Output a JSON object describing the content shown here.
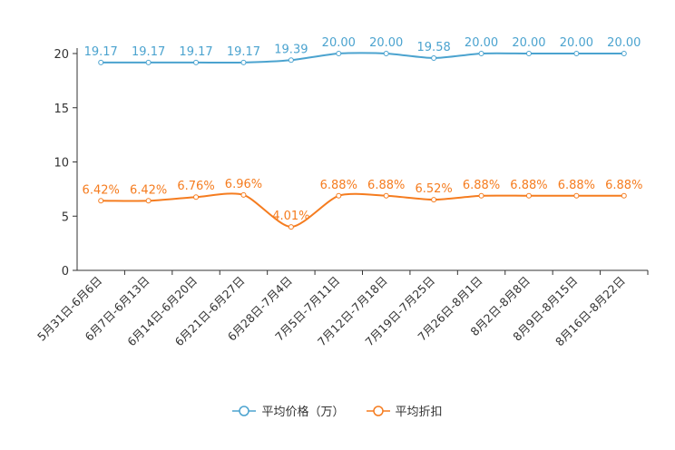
{
  "chart_data": {
    "type": "line",
    "categories": [
      "5月31日-6月6日",
      "6月7日-6月13日",
      "6月14日-6月20日",
      "6月21日-6月27日",
      "6月28日-7月4日",
      "7月5日-7月11日",
      "7月12日-7月18日",
      "7月19日-7月25日",
      "7月26日-8月1日",
      "8月2日-8月8日",
      "8月9日-8月15日",
      "8月16日-8月22日"
    ],
    "series": [
      {
        "name": "平均价格（万）",
        "color": "#4ba3cf",
        "values": [
          19.17,
          19.17,
          19.17,
          19.17,
          19.39,
          20.0,
          20.0,
          19.58,
          20.0,
          20.0,
          20.0,
          20.0
        ],
        "labels": [
          "19.17",
          "19.17",
          "19.17",
          "19.17",
          "19.39",
          "20.00",
          "20.00",
          "19.58",
          "20.00",
          "20.00",
          "20.00",
          "20.00"
        ]
      },
      {
        "name": "平均折扣",
        "color": "#f57c1f",
        "values": [
          6.42,
          6.42,
          6.76,
          6.96,
          4.01,
          6.88,
          6.88,
          6.52,
          6.88,
          6.88,
          6.88,
          6.88
        ],
        "labels": [
          "6.42%",
          "6.42%",
          "6.76%",
          "6.96%",
          "4.01%",
          "6.88%",
          "6.88%",
          "6.52%",
          "6.88%",
          "6.88%",
          "6.88%",
          "6.88%"
        ]
      }
    ],
    "yticks": [
      0,
      5,
      10,
      15,
      20
    ],
    "ylim": [
      0,
      20
    ],
    "title": "",
    "xlabel": "",
    "ylabel": ""
  }
}
